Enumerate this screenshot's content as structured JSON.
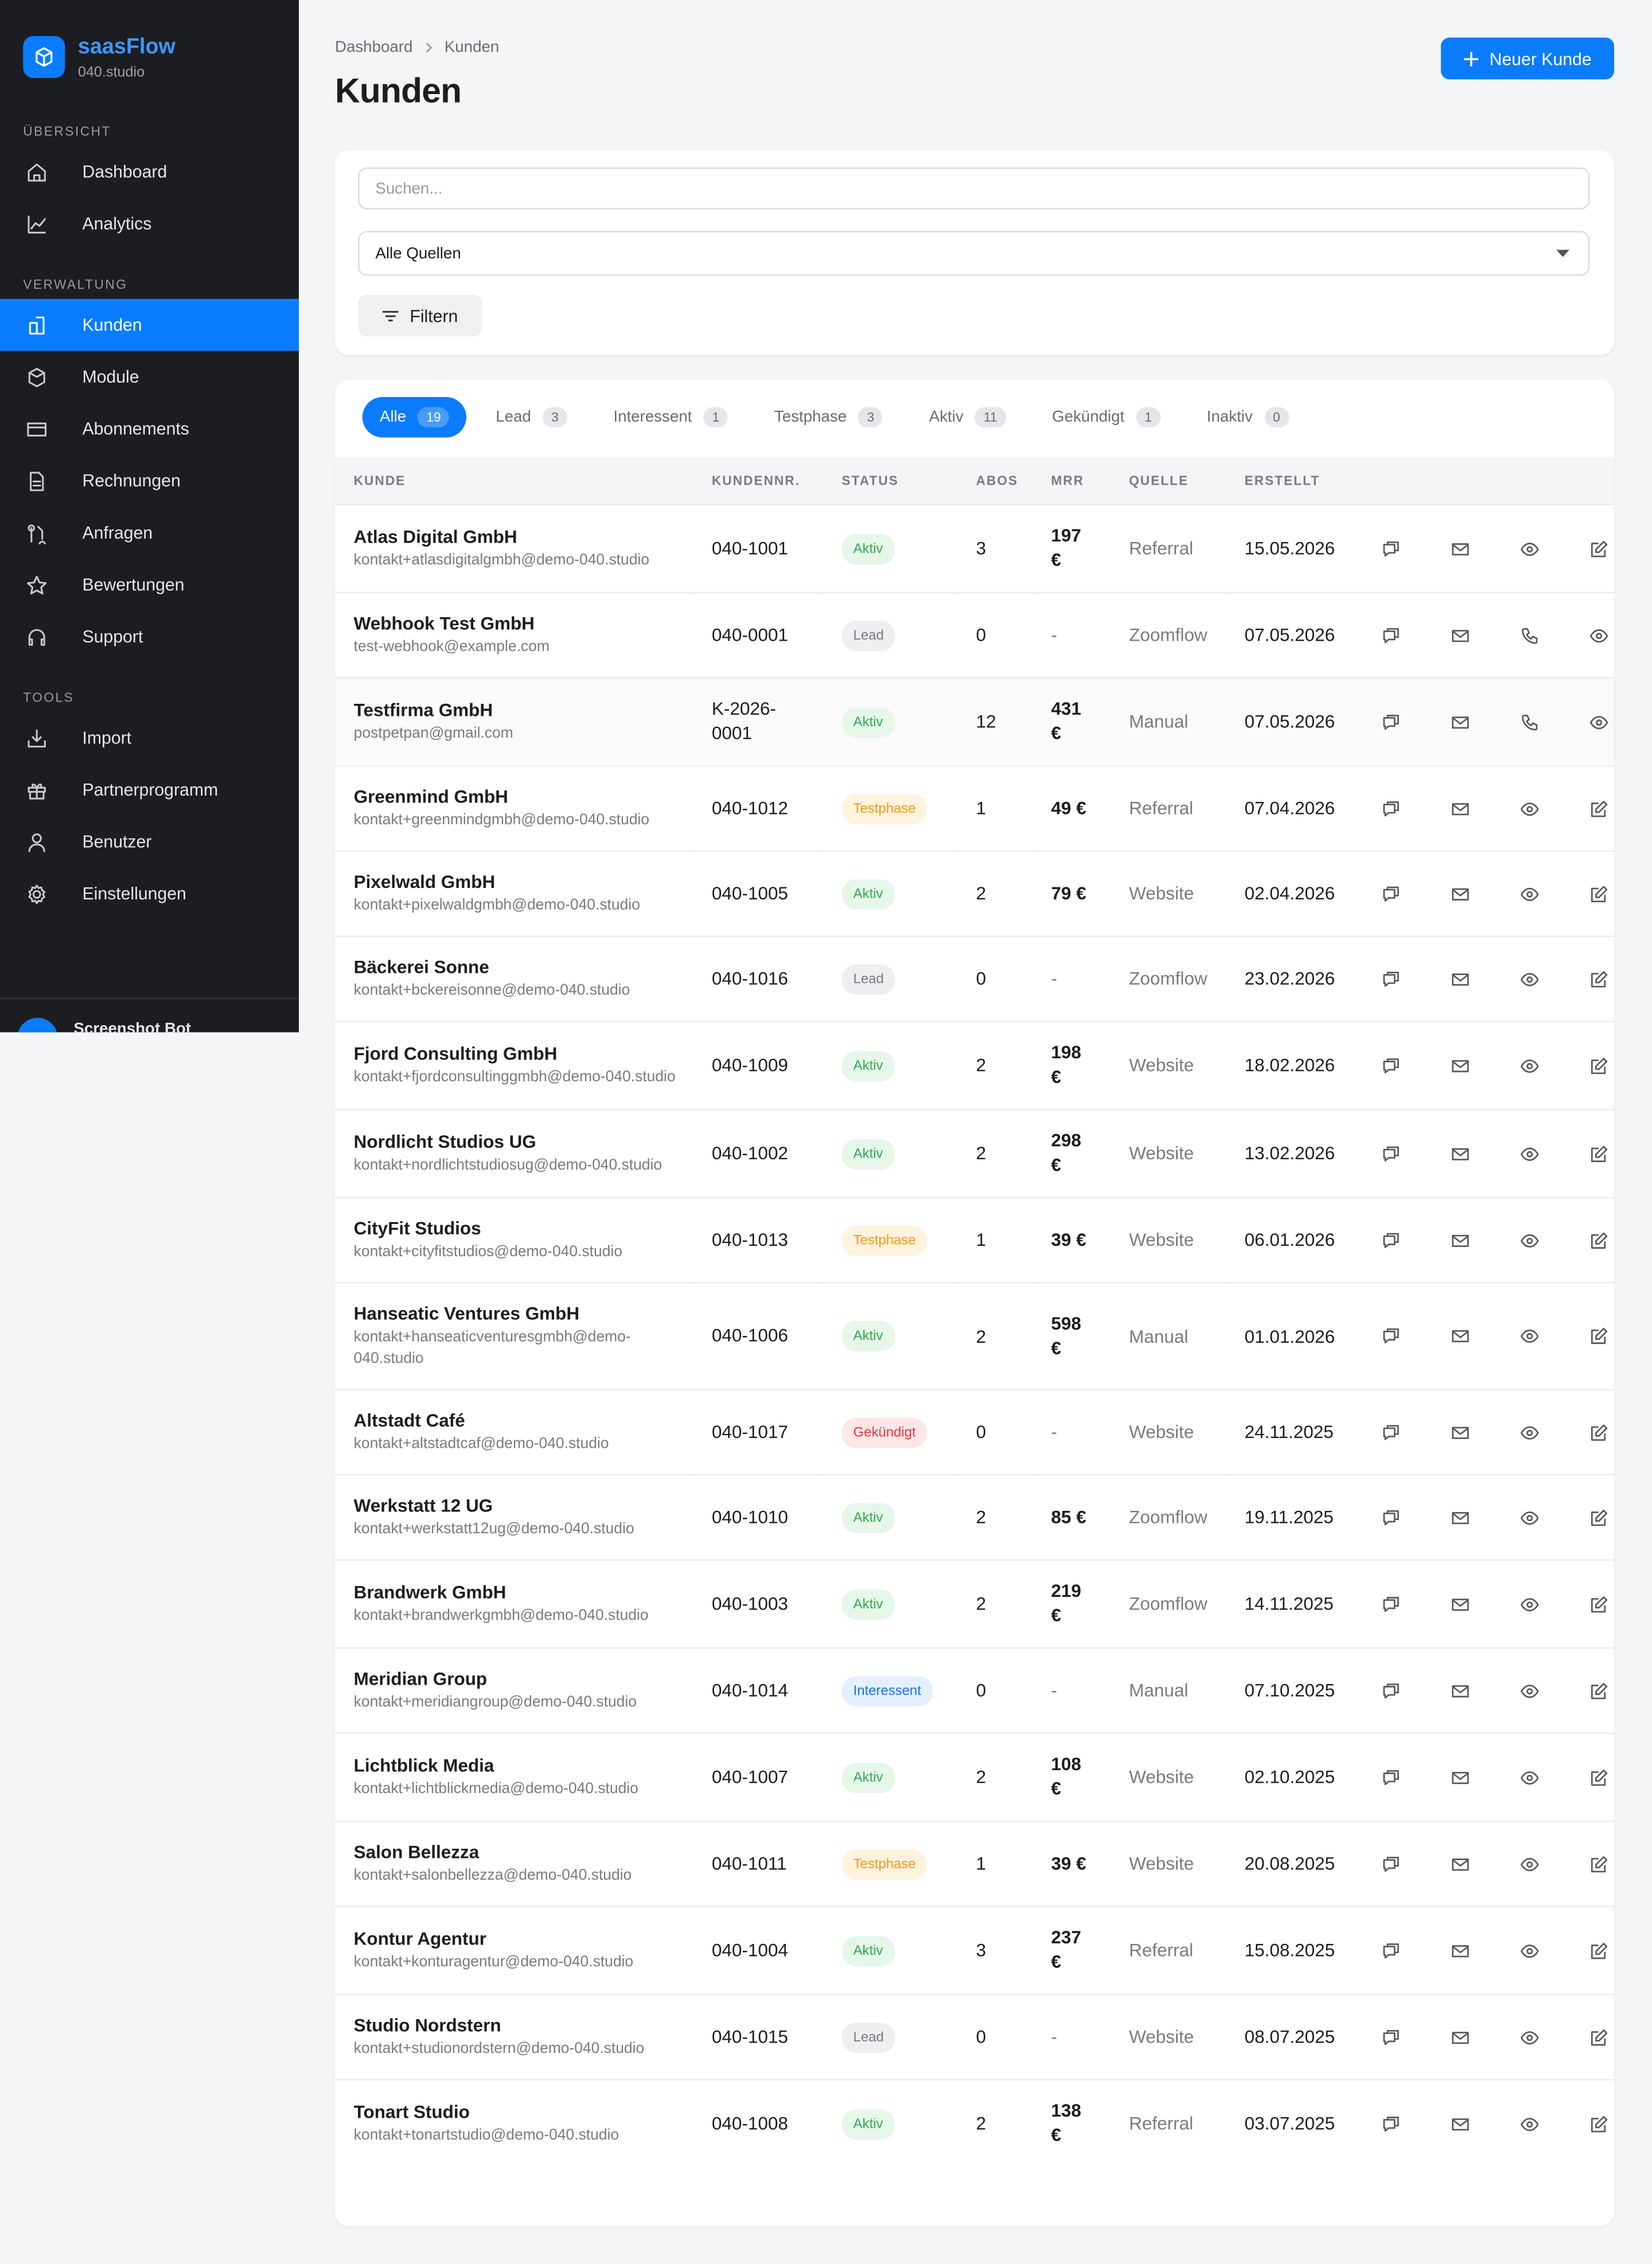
{
  "sidebar": {
    "brand": "saasFlow",
    "workspace": "040.studio",
    "sections": [
      {
        "title": "ÜBERSICHT",
        "items": [
          "Dashboard",
          "Analytics"
        ]
      },
      {
        "title": "VERWALTUNG",
        "items": [
          "Kunden",
          "Module",
          "Abonnements",
          "Rechnungen",
          "Anfragen",
          "Bewertungen",
          "Support"
        ]
      },
      {
        "title": "TOOLS",
        "items": [
          "Import",
          "Partnerprogramm",
          "Benutzer",
          "Einstellungen"
        ]
      }
    ],
    "active": "Kunden",
    "user": "Screenshot Bot"
  },
  "header": {
    "breadcrumb": [
      "Dashboard",
      "Kunden"
    ],
    "title": "Kunden",
    "button": "Neuer Kunde"
  },
  "filters": {
    "search_placeholder": "Suchen...",
    "source": "Alle Quellen",
    "button": "Filtern"
  },
  "tabs": [
    {
      "label": "Alle",
      "count": 19
    },
    {
      "label": "Lead",
      "count": 3
    },
    {
      "label": "Interessent",
      "count": 1
    },
    {
      "label": "Testphase",
      "count": 3
    },
    {
      "label": "Aktiv",
      "count": 11
    },
    {
      "label": "Gekündigt",
      "count": 1
    },
    {
      "label": "Inaktiv",
      "count": 0
    }
  ],
  "table": {
    "columns": [
      "KUNDE",
      "KUNDENNR.",
      "STATUS",
      "ABOS",
      "MRR",
      "QUELLE",
      "ERSTELLT"
    ],
    "rows": [
      [
        "Atlas Digital GmbH",
        "kontakt+atlasdigitalgmbh@demo-040.studio",
        "040-1001",
        "Aktiv",
        3,
        "197 €",
        "Referral",
        "15.05.2026"
      ],
      [
        "Webhook Test GmbH",
        "test-webhook@example.com",
        "040-0001",
        "Lead",
        0,
        "-",
        "Zoomflow",
        "07.05.2026"
      ],
      [
        "Testfirma GmbH",
        "postpetpan@gmail.com",
        "K-2026-0001",
        "Aktiv",
        12,
        "431 €",
        "Manual",
        "07.05.2026"
      ],
      [
        "Greenmind GmbH",
        "kontakt+greenmindgmbh@demo-040.studio",
        "040-1012",
        "Testphase",
        1,
        "49 €",
        "Referral",
        "07.04.2026"
      ],
      [
        "Pixelwald GmbH",
        "kontakt+pixelwaldgmbh@demo-040.studio",
        "040-1005",
        "Aktiv",
        2,
        "79 €",
        "Website",
        "02.04.2026"
      ],
      [
        "Bäckerei Sonne",
        "kontakt+bckereisonne@demo-040.studio",
        "040-1016",
        "Lead",
        0,
        "-",
        "Zoomflow",
        "23.02.2026"
      ],
      [
        "Fjord Consulting GmbH",
        "kontakt+fjordconsultinggmbh@demo-040.studio",
        "040-1009",
        "Aktiv",
        2,
        "198 €",
        "Website",
        "18.02.2026"
      ],
      [
        "Nordlicht Studios UG",
        "kontakt+nordlichtstudiosug@demo-040.studio",
        "040-1002",
        "Aktiv",
        2,
        "298 €",
        "Website",
        "13.02.2026"
      ],
      [
        "CityFit Studios",
        "kontakt+cityfitstudios@demo-040.studio",
        "040-1013",
        "Testphase",
        1,
        "39 €",
        "Website",
        "06.01.2026"
      ],
      [
        "Hanseatic Ventures GmbH",
        "kontakt+hanseaticventuresgmbh@demo-040.studio",
        "040-1006",
        "Aktiv",
        2,
        "598 €",
        "Manual",
        "01.01.2026"
      ],
      [
        "Altstadt Café",
        "kontakt+altstadtcaf@demo-040.studio",
        "040-1017",
        "Gekündigt",
        0,
        "-",
        "Website",
        "24.11.2025"
      ],
      [
        "Werkstatt 12 UG",
        "kontakt+werkstatt12ug@demo-040.studio",
        "040-1010",
        "Aktiv",
        2,
        "85 €",
        "Zoomflow",
        "19.11.2025"
      ],
      [
        "Brandwerk GmbH",
        "kontakt+brandwerkgmbh@demo-040.studio",
        "040-1003",
        "Aktiv",
        2,
        "219 €",
        "Zoomflow",
        "14.11.2025"
      ],
      [
        "Meridian Group",
        "kontakt+meridiangroup@demo-040.studio",
        "040-1014",
        "Interessent",
        0,
        "-",
        "Manual",
        "07.10.2025"
      ],
      [
        "Lichtblick Media",
        "kontakt+lichtblickmedia@demo-040.studio",
        "040-1007",
        "Aktiv",
        2,
        "108 €",
        "Website",
        "02.10.2025"
      ],
      [
        "Salon Bellezza",
        "kontakt+salonbellezza@demo-040.studio",
        "040-1011",
        "Testphase",
        1,
        "39 €",
        "Website",
        "20.08.2025"
      ],
      [
        "Kontur Agentur",
        "kontakt+konturagentur@demo-040.studio",
        "040-1004",
        "Aktiv",
        3,
        "237 €",
        "Referral",
        "15.08.2025"
      ],
      [
        "Studio Nordstern",
        "kontakt+studionordstern@demo-040.studio",
        "040-1015",
        "Lead",
        0,
        "-",
        "Website",
        "08.07.2025"
      ],
      [
        "Tonart Studio",
        "kontakt+tonartstudio@demo-040.studio",
        "040-1008",
        "Aktiv",
        2,
        "138 €",
        "Referral",
        "03.07.2025"
      ]
    ]
  }
}
